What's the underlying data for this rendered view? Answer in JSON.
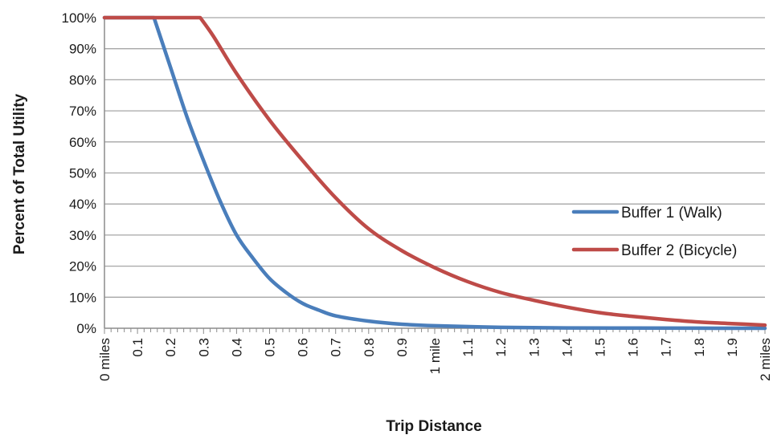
{
  "chart_data": {
    "type": "line",
    "title": "",
    "xlabel": "Trip Distance",
    "ylabel": "Percent of Total Utility",
    "xlim": [
      0,
      2
    ],
    "ylim": [
      0,
      100
    ],
    "grid": true,
    "legend_position": "right",
    "y_ticks": [
      {
        "value": 0,
        "label": "0%"
      },
      {
        "value": 10,
        "label": "10%"
      },
      {
        "value": 20,
        "label": "20%"
      },
      {
        "value": 30,
        "label": "30%"
      },
      {
        "value": 40,
        "label": "40%"
      },
      {
        "value": 50,
        "label": "50%"
      },
      {
        "value": 60,
        "label": "60%"
      },
      {
        "value": 70,
        "label": "70%"
      },
      {
        "value": 80,
        "label": "80%"
      },
      {
        "value": 90,
        "label": "90%"
      },
      {
        "value": 100,
        "label": "100%"
      }
    ],
    "x_ticks": [
      {
        "value": 0,
        "label": "0 miles"
      },
      {
        "value": 0.1,
        "label": "0.1"
      },
      {
        "value": 0.2,
        "label": "0.2"
      },
      {
        "value": 0.3,
        "label": "0.3"
      },
      {
        "value": 0.4,
        "label": "0.4"
      },
      {
        "value": 0.5,
        "label": "0.5"
      },
      {
        "value": 0.6,
        "label": "0.6"
      },
      {
        "value": 0.7,
        "label": "0.7"
      },
      {
        "value": 0.8,
        "label": "0.8"
      },
      {
        "value": 0.9,
        "label": "0.9"
      },
      {
        "value": 1.0,
        "label": "1 mile"
      },
      {
        "value": 1.1,
        "label": "1.1"
      },
      {
        "value": 1.2,
        "label": "1.2"
      },
      {
        "value": 1.3,
        "label": "1.3"
      },
      {
        "value": 1.4,
        "label": "1.4"
      },
      {
        "value": 1.5,
        "label": "1.5"
      },
      {
        "value": 1.6,
        "label": "1.6"
      },
      {
        "value": 1.7,
        "label": "1.7"
      },
      {
        "value": 1.8,
        "label": "1.8"
      },
      {
        "value": 1.9,
        "label": "1.9"
      },
      {
        "value": 2.0,
        "label": "2 miles"
      }
    ],
    "series": [
      {
        "name": "Buffer 1 (Walk)",
        "color": "#4a7ebb",
        "points": [
          [
            0,
            100
          ],
          [
            0.15,
            100
          ],
          [
            0.2,
            84
          ],
          [
            0.25,
            68
          ],
          [
            0.3,
            54
          ],
          [
            0.35,
            41
          ],
          [
            0.4,
            30
          ],
          [
            0.45,
            22.5
          ],
          [
            0.5,
            16
          ],
          [
            0.55,
            11.5
          ],
          [
            0.6,
            8
          ],
          [
            0.65,
            5.8
          ],
          [
            0.7,
            4
          ],
          [
            0.8,
            2.3
          ],
          [
            0.9,
            1.3
          ],
          [
            1.0,
            0.8
          ],
          [
            1.2,
            0.3
          ],
          [
            1.4,
            0.1
          ],
          [
            1.6,
            0.05
          ],
          [
            1.8,
            0.02
          ],
          [
            2.0,
            0
          ]
        ]
      },
      {
        "name": "Buffer 2 (Bicycle)",
        "color": "#be4b48",
        "points": [
          [
            0,
            100
          ],
          [
            0.29,
            100
          ],
          [
            0.33,
            94
          ],
          [
            0.4,
            82
          ],
          [
            0.5,
            67
          ],
          [
            0.6,
            54
          ],
          [
            0.7,
            42
          ],
          [
            0.8,
            32
          ],
          [
            0.9,
            25
          ],
          [
            1.0,
            19.5
          ],
          [
            1.1,
            15
          ],
          [
            1.2,
            11.5
          ],
          [
            1.3,
            9
          ],
          [
            1.4,
            6.8
          ],
          [
            1.5,
            5
          ],
          [
            1.6,
            3.8
          ],
          [
            1.7,
            2.8
          ],
          [
            1.8,
            2
          ],
          [
            1.9,
            1.5
          ],
          [
            2.0,
            1
          ]
        ]
      }
    ]
  }
}
